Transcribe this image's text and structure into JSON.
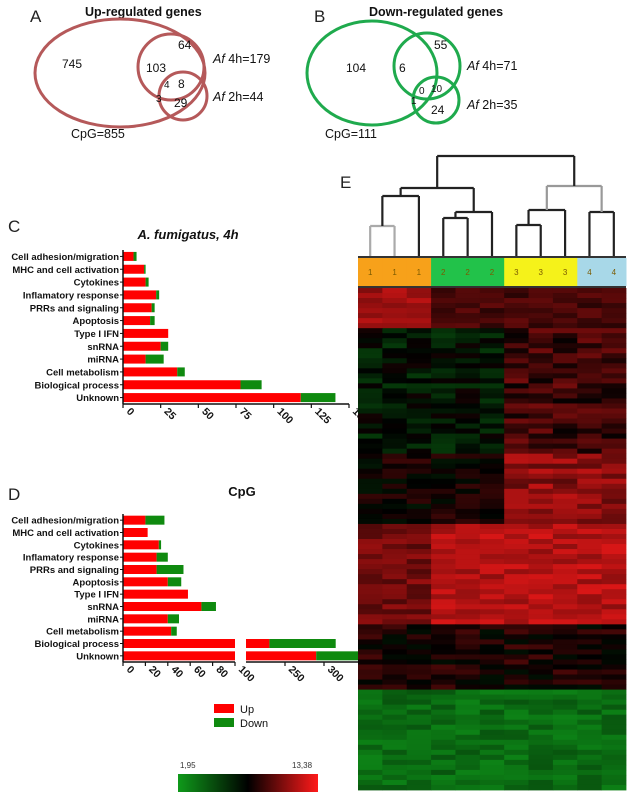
{
  "panels": {
    "A": {
      "letter": "A",
      "title": "Up-regulated genes",
      "regions": {
        "cpg_only": "745",
        "af4_only": "64",
        "cpg_af4": "103",
        "all_three": "4",
        "af4_af2": "8",
        "cpg_af2": "3",
        "af2_only": "29"
      },
      "set_labels": {
        "cpg": "CpG=855",
        "af4_prefix": "Af",
        "af4_suffix": " 4h=179",
        "af2_prefix": "Af",
        "af2_suffix": " 2h=44"
      },
      "color": "#b5595a"
    },
    "B": {
      "letter": "B",
      "title": "Down-regulated genes",
      "regions": {
        "cpg_only": "104",
        "af4_only": "55",
        "cpg_af4": "6",
        "all_three": "0",
        "af4_af2": "10",
        "cpg_af2": "1",
        "af2_only": "24"
      },
      "set_labels": {
        "cpg": "CpG=111",
        "af4_prefix": "Af",
        "af4_suffix": " 4h=71",
        "af2_prefix": "Af",
        "af2_suffix": " 2h=35"
      },
      "color": "#1faa4d"
    },
    "C": {
      "letter": "C"
    },
    "D": {
      "letter": "D"
    },
    "E": {
      "letter": "E"
    }
  },
  "chart_data": [
    {
      "type": "bar",
      "orientation": "horizontal",
      "stacked": true,
      "title": "A. fumigatus, 4h",
      "categories": [
        "Cell adhesion/migration",
        "MHC and cell activation",
        "Cytokines",
        "Inflamatory response",
        "PRRs and signaling",
        "Apoptosis",
        "Type I IFN",
        "snRNA",
        "miRNA",
        "Cell metabolism",
        "Biological process",
        "Unknown"
      ],
      "series": [
        {
          "name": "Up",
          "values": [
            7,
            14,
            15,
            22,
            19,
            18,
            30,
            25,
            15,
            36,
            78,
            118
          ],
          "color": "#ff0000"
        },
        {
          "name": "Down",
          "values": [
            2,
            1,
            2,
            2,
            2,
            3,
            0,
            5,
            12,
            5,
            14,
            23
          ],
          "color": "#0f8a0f"
        }
      ],
      "xlim": [
        0,
        150
      ],
      "xticks": [
        "0",
        "25",
        "50",
        "75",
        "100",
        "125",
        "150"
      ]
    },
    {
      "type": "bar",
      "orientation": "horizontal",
      "stacked": true,
      "broken_axis": true,
      "title": "CpG",
      "categories": [
        "Cell adhesion/migration",
        "MHC and cell activation",
        "Cytokines",
        "Inflamatory response",
        "PRRs and signaling",
        "Apoptosis",
        "Type I IFN",
        "snRNA",
        "miRNA",
        "Cell metabolism",
        "Biological process",
        "Unknown"
      ],
      "series": [
        {
          "name": "Up",
          "values": [
            20,
            22,
            32,
            30,
            30,
            40,
            58,
            70,
            40,
            43,
            230,
            290
          ],
          "color": "#ff0000"
        },
        {
          "name": "Down",
          "values": [
            17,
            0,
            2,
            10,
            24,
            12,
            0,
            13,
            10,
            5,
            85,
            65
          ],
          "color": "#0f8a0f"
        }
      ],
      "xlim_segments": [
        [
          0,
          100
        ],
        [
          200,
          400
        ]
      ],
      "xticks": [
        "0",
        "20",
        "40",
        "60",
        "80",
        "100",
        "250",
        "300",
        "350",
        "400"
      ],
      "legend": {
        "placement": "bottom",
        "entries": [
          "Up",
          "Down"
        ]
      }
    },
    {
      "type": "heatmap",
      "groups": [
        "1",
        "1",
        "1",
        "2",
        "2",
        "2",
        "3",
        "3",
        "3",
        "4",
        "4"
      ],
      "group_colors": {
        "1": "#f7a11a",
        "2": "#22c24a",
        "3": "#f5f21a",
        "4": "#a8d8e8"
      },
      "colorscale": {
        "min": "1,95",
        "max": "13,38",
        "colors": [
          "#0f9a1a",
          "#000000",
          "#ff1a1a"
        ]
      }
    }
  ]
}
